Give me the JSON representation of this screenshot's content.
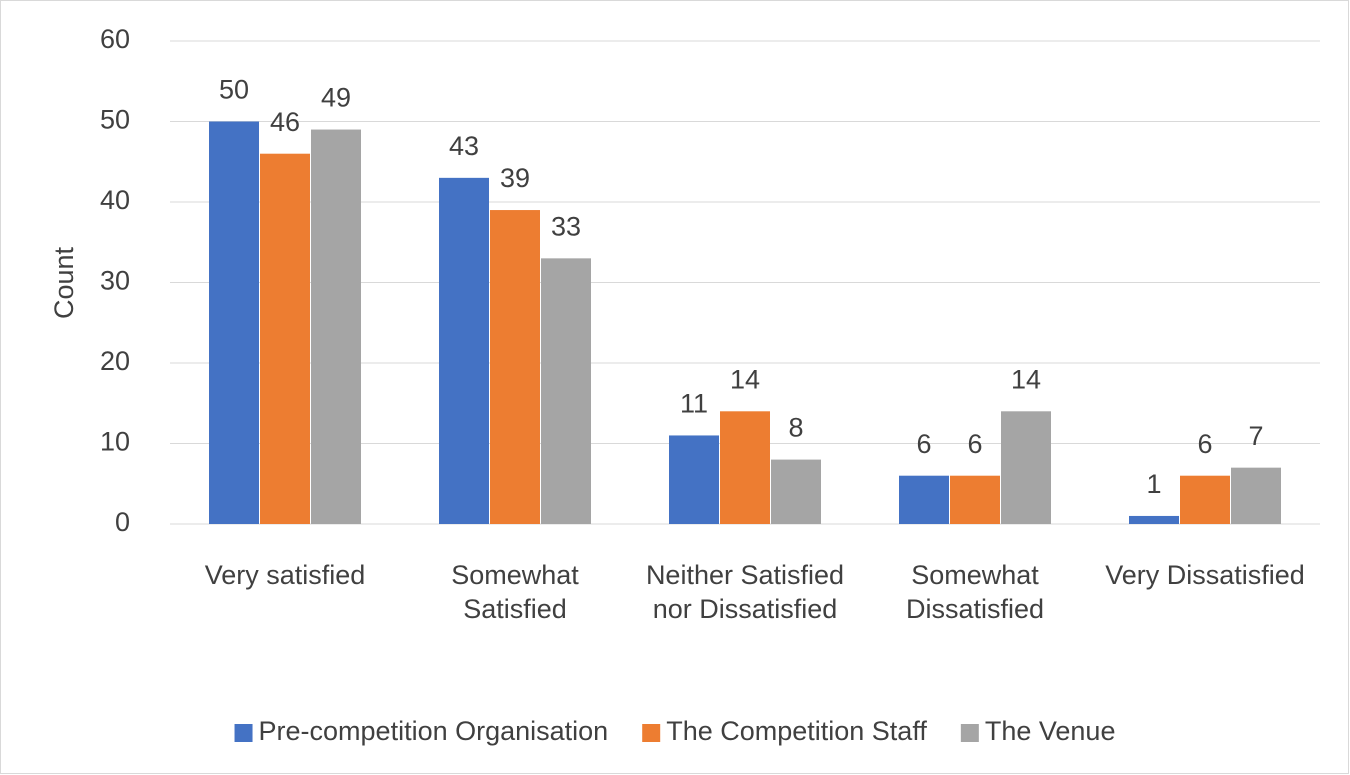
{
  "chart_data": {
    "type": "bar",
    "y_label": "Count",
    "categories": [
      "Very satisfied",
      "Somewhat Satisfied",
      "Neither Satisfied nor Dissatisfied",
      "Somewhat Dissatisfied",
      "Very Dissatisfied"
    ],
    "series": [
      {
        "name": "Pre-competition Organisation",
        "color": "#4472c4",
        "values": [
          50,
          43,
          11,
          6,
          1
        ]
      },
      {
        "name": "The Competition Staff",
        "color": "#ed7d31",
        "values": [
          46,
          39,
          14,
          6,
          6
        ]
      },
      {
        "name": "The Venue",
        "color": "#a5a5a5",
        "values": [
          49,
          33,
          8,
          14,
          7
        ]
      }
    ],
    "ylim": [
      0,
      60
    ],
    "yticks": [
      0,
      10,
      20,
      30,
      40,
      50,
      60
    ],
    "grid": true,
    "legend": "bottom"
  }
}
